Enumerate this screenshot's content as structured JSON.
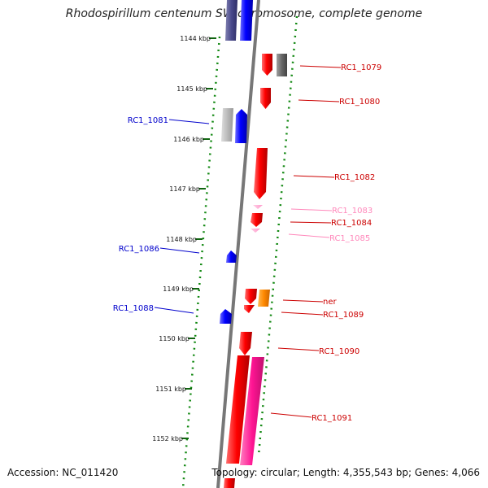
{
  "title": "Rhodospirillum centenum SW chromosome, complete genome",
  "accession": "Accession: NC_011420",
  "topology": "Topology: circular; Length: 4,355,543 bp; Genes: 4,066",
  "colors": {
    "forward_cds": "#ff0000",
    "reverse_cds": "#0000ff",
    "trna": "#ff99cc",
    "rrna": "#ff1493",
    "other": "#ff8800",
    "gray_feature": "#888888",
    "tick": "#116611"
  },
  "ticks": [
    {
      "label": "1144 kbp"
    },
    {
      "label": "1145 kbp"
    },
    {
      "label": "1146 kbp"
    },
    {
      "label": "1147 kbp"
    },
    {
      "label": "1148 kbp"
    },
    {
      "label": "1149 kbp"
    },
    {
      "label": "1150 kbp"
    },
    {
      "label": "1151 kbp"
    },
    {
      "label": "1152 kbp"
    }
  ],
  "genes": [
    {
      "label": "RC1_1079",
      "color": "#cc0000"
    },
    {
      "label": "RC1_1080",
      "color": "#cc0000"
    },
    {
      "label": "RC1_1081",
      "color": "#0000cc"
    },
    {
      "label": "RC1_1082",
      "color": "#cc0000"
    },
    {
      "label": "RC1_1083",
      "color": "#ff88bb"
    },
    {
      "label": "RC1_1084",
      "color": "#cc0000"
    },
    {
      "label": "RC1_1085",
      "color": "#ff88bb"
    },
    {
      "label": "RC1_1086",
      "color": "#0000cc"
    },
    {
      "label": "ner",
      "color": "#cc0000"
    },
    {
      "label": "RC1_1088",
      "color": "#0000cc"
    },
    {
      "label": "RC1_1089",
      "color": "#cc0000"
    },
    {
      "label": "RC1_1090",
      "color": "#cc0000"
    },
    {
      "label": "RC1_1091",
      "color": "#cc0000"
    }
  ]
}
